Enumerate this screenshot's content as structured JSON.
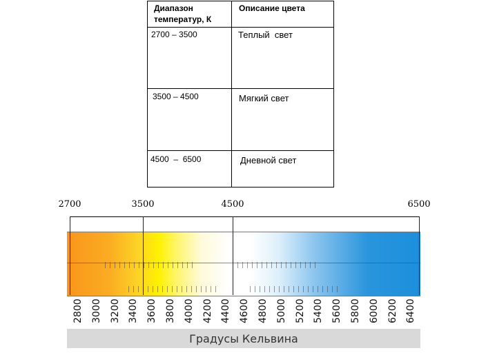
{
  "table": {
    "headers": [
      "Диапазон\nтемператур, К",
      "Описание цвета"
    ],
    "header_range_line1": "Диапазон",
    "header_range_line2": "температур, К",
    "header_desc": "Описание цвета",
    "rows": [
      {
        "range": "2700 – 3500",
        "desc": "Теплый  свет"
      },
      {
        "range": "3500 – 4500",
        "desc": "Мягкий свет"
      },
      {
        "range": "4500  –  6500",
        "desc": "Дневной свет"
      }
    ]
  },
  "scale": {
    "top_labels": [
      "2700",
      "3500",
      "4500",
      "6500"
    ],
    "tick_labels": [
      "2800",
      "3000",
      "3200",
      "3400",
      "3600",
      "3800",
      "4000",
      "4200",
      "4400",
      "4600",
      "4800",
      "5000",
      "5200",
      "5400",
      "5600",
      "5800",
      "6000",
      "6200",
      "6400"
    ],
    "footer": "Градусы Кельвина",
    "colors": {
      "warm": "#f9961b",
      "yellow": "#fff200",
      "white": "#ffffff",
      "blue": "#1b8fdc"
    }
  }
}
